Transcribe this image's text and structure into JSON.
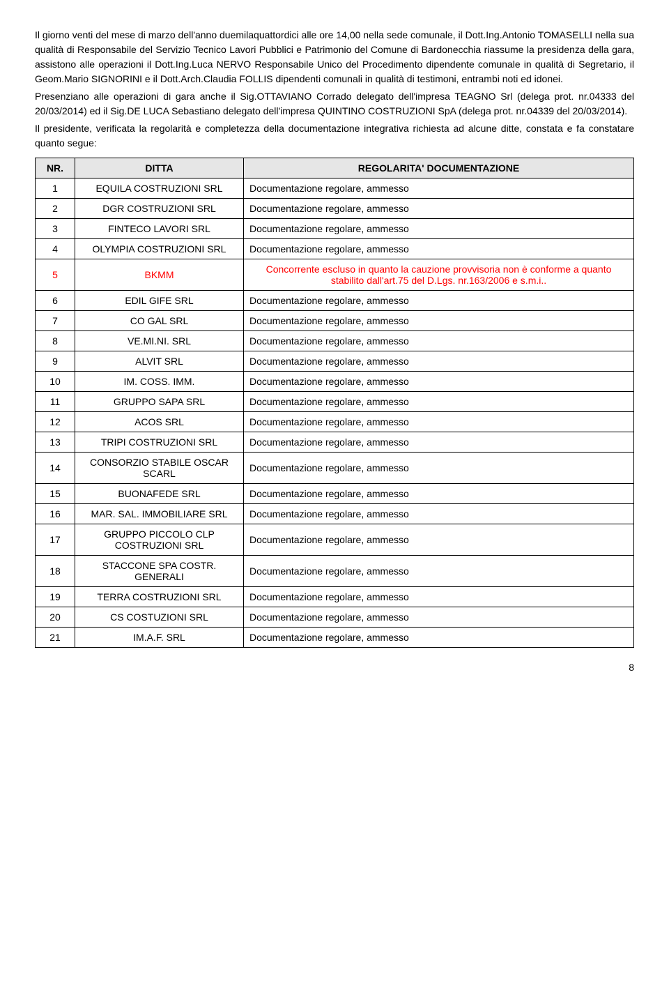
{
  "intro": {
    "p1": "Il giorno venti del mese di marzo dell'anno duemilaquattordici alle ore 14,00 nella sede comunale, il Dott.Ing.Antonio TOMASELLI nella sua qualità di Responsabile del Servizio Tecnico Lavori Pubblici e Patrimonio del Comune di Bardonecchia riassume la presidenza della gara, assistono alle operazioni il Dott.Ing.Luca NERVO Responsabile Unico del Procedimento dipendente comunale in qualità di Segretario, il Geom.Mario SIGNORINI e il Dott.Arch.Claudia FOLLIS dipendenti comunali in qualità di testimoni, entrambi noti ed idonei.",
    "p2": "Presenziano alle operazioni di gara anche il Sig.OTTAVIANO Corrado delegato dell'impresa TEAGNO Srl (delega prot. nr.04333 del 20/03/2014) ed il Sig.DE LUCA Sebastiano delegato dell'impresa QUINTINO COSTRUZIONI SpA (delega prot. nr.04339 del 20/03/2014).",
    "p3": "Il presidente, verificata la regolarità e completezza della documentazione integrativa richiesta ad alcune ditte, constata e fa constatare quanto segue:"
  },
  "table": {
    "headers": {
      "nr": "NR.",
      "ditta": "DITTA",
      "reg": "REGOLARITA' DOCUMENTAZIONE"
    },
    "rows": [
      {
        "nr": "1",
        "ditta": "EQUILA COSTRUZIONI SRL",
        "reg": "Documentazione regolare, ammesso",
        "excluded": false
      },
      {
        "nr": "2",
        "ditta": "DGR COSTRUZIONI SRL",
        "reg": "Documentazione regolare, ammesso",
        "excluded": false
      },
      {
        "nr": "3",
        "ditta": "FINTECO LAVORI SRL",
        "reg": "Documentazione regolare, ammesso",
        "excluded": false
      },
      {
        "nr": "4",
        "ditta": "OLYMPIA COSTRUZIONI SRL",
        "reg": "Documentazione regolare, ammesso",
        "excluded": false
      },
      {
        "nr": "5",
        "ditta": "BKMM",
        "reg": "Concorrente escluso in quanto la cauzione provvisoria non è conforme a quanto stabilito dall'art.75 del D.Lgs. nr.163/2006 e s.m.i..",
        "excluded": true
      },
      {
        "nr": "6",
        "ditta": "EDIL GIFE SRL",
        "reg": "Documentazione regolare, ammesso",
        "excluded": false
      },
      {
        "nr": "7",
        "ditta": "CO GAL SRL",
        "reg": "Documentazione regolare, ammesso",
        "excluded": false
      },
      {
        "nr": "8",
        "ditta": "VE.MI.NI. SRL",
        "reg": "Documentazione regolare, ammesso",
        "excluded": false
      },
      {
        "nr": "9",
        "ditta": "ALVIT SRL",
        "reg": "Documentazione regolare, ammesso",
        "excluded": false
      },
      {
        "nr": "10",
        "ditta": "IM. COSS. IMM.",
        "reg": "Documentazione regolare, ammesso",
        "excluded": false
      },
      {
        "nr": "11",
        "ditta": "GRUPPO SAPA SRL",
        "reg": "Documentazione regolare, ammesso",
        "excluded": false
      },
      {
        "nr": "12",
        "ditta": "ACOS SRL",
        "reg": "Documentazione regolare, ammesso",
        "excluded": false
      },
      {
        "nr": "13",
        "ditta": "TRIPI COSTRUZIONI SRL",
        "reg": "Documentazione regolare, ammesso",
        "excluded": false
      },
      {
        "nr": "14",
        "ditta": "CONSORZIO STABILE OSCAR SCARL",
        "reg": "Documentazione regolare, ammesso",
        "excluded": false
      },
      {
        "nr": "15",
        "ditta": "BUONAFEDE SRL",
        "reg": "Documentazione regolare, ammesso",
        "excluded": false
      },
      {
        "nr": "16",
        "ditta": "MAR. SAL. IMMOBILIARE SRL",
        "reg": "Documentazione regolare, ammesso",
        "excluded": false
      },
      {
        "nr": "17",
        "ditta": "GRUPPO PICCOLO CLP COSTRUZIONI SRL",
        "reg": "Documentazione regolare, ammesso",
        "excluded": false
      },
      {
        "nr": "18",
        "ditta": "STACCONE SPA COSTR. GENERALI",
        "reg": "Documentazione regolare, ammesso",
        "excluded": false
      },
      {
        "nr": "19",
        "ditta": "TERRA COSTRUZIONI SRL",
        "reg": "Documentazione regolare, ammesso",
        "excluded": false
      },
      {
        "nr": "20",
        "ditta": "CS COSTUZIONI SRL",
        "reg": "Documentazione regolare, ammesso",
        "excluded": false
      },
      {
        "nr": "21",
        "ditta": "IM.A.F. SRL",
        "reg": "Documentazione regolare, ammesso",
        "excluded": false
      }
    ]
  },
  "page_number": "8"
}
